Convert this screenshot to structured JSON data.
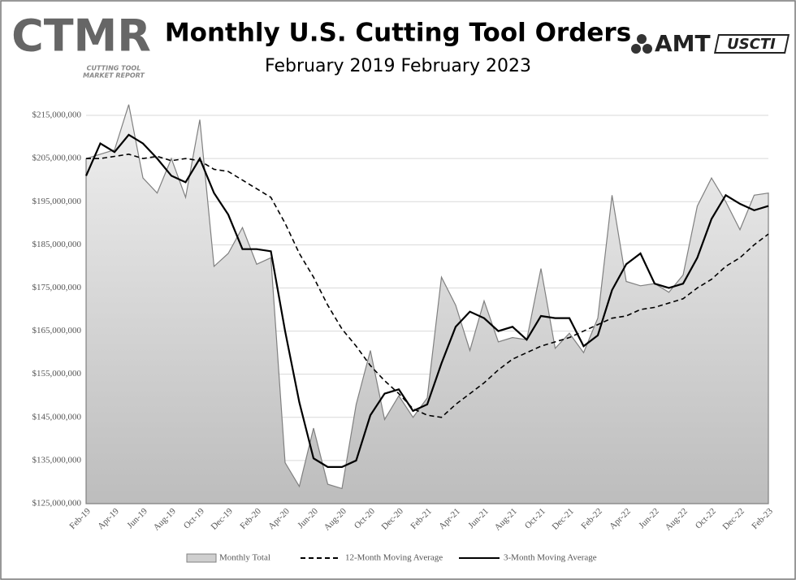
{
  "logos": {
    "ctmr": "CTMR",
    "ctmr_tagline_1": "CUTTING TOOL",
    "ctmr_tagline_2": "MARKET REPORT",
    "amt": "AMT",
    "uscti": "USCTI"
  },
  "chart_data": {
    "type": "line",
    "title": "Monthly U.S. Cutting Tool Orders",
    "subtitle": "February 2019 February 2023",
    "categories": [
      "Feb-19",
      null,
      "Apr-19",
      null,
      "Jun-19",
      null,
      "Aug-19",
      null,
      "Oct-19",
      null,
      "Dec-19",
      null,
      "Feb-20",
      null,
      "Apr-20",
      null,
      "Jun-20",
      null,
      "Aug-20",
      null,
      "Oct-20",
      null,
      "Dec-20",
      null,
      "Feb-21",
      null,
      "Apr-21",
      null,
      "Jun-21",
      null,
      "Aug-21",
      null,
      "Oct-21",
      null,
      "Dec-21",
      null,
      "Feb-22",
      null,
      "Apr-22",
      null,
      "Jun-22",
      null,
      "Aug-22",
      null,
      "Oct-22",
      null,
      "Dec-22",
      null,
      "Feb-23"
    ],
    "series": [
      {
        "name": "Monthly Total",
        "style": "area",
        "color": "#808080",
        "values": [
          205000000,
          206000000,
          207000000,
          217500000,
          200500000,
          197000000,
          205000000,
          196000000,
          214000000,
          180000000,
          183000000,
          189000000,
          180500000,
          182000000,
          134500000,
          129000000,
          142500000,
          129500000,
          128500000,
          148000000,
          160500000,
          144500000,
          150000000,
          145000000,
          149500000,
          177500000,
          171000000,
          160500000,
          172000000,
          162500000,
          163500000,
          163000000,
          179500000,
          161000000,
          164500000,
          160000000,
          168000000,
          196500000,
          176500000,
          175500000,
          176000000,
          174000000,
          178000000,
          194000000,
          200500000,
          195000000,
          188500000,
          196500000,
          197000000
        ]
      },
      {
        "name": "12-Month Moving Average",
        "style": "dashed",
        "color": "#000000",
        "values": [
          205000000,
          205000000,
          205500000,
          206000000,
          205000000,
          205500000,
          204500000,
          205000000,
          204500000,
          202500000,
          202000000,
          200000000,
          198000000,
          196000000,
          190000000,
          183000000,
          177500000,
          171000000,
          165500000,
          161500000,
          157000000,
          153500000,
          150500000,
          147000000,
          145500000,
          145000000,
          148000000,
          150500000,
          153000000,
          156000000,
          158500000,
          160000000,
          161500000,
          162500000,
          163500000,
          165000000,
          166500000,
          168000000,
          168500000,
          170000000,
          170500000,
          171500000,
          172500000,
          175000000,
          177000000,
          180000000,
          182000000,
          185000000,
          187500000
        ]
      },
      {
        "name": "3-Month Moving Average",
        "style": "solid",
        "color": "#000000",
        "values": [
          201000000,
          208500000,
          206500000,
          210500000,
          208500000,
          205000000,
          201000000,
          199500000,
          205000000,
          197000000,
          192000000,
          184000000,
          184000000,
          183500000,
          165000000,
          148500000,
          135500000,
          133500000,
          133500000,
          135000000,
          145500000,
          150500000,
          151500000,
          146500000,
          148000000,
          157500000,
          166000000,
          169500000,
          168000000,
          165000000,
          166000000,
          163000000,
          168500000,
          168000000,
          168000000,
          161500000,
          164000000,
          174500000,
          180500000,
          183000000,
          176000000,
          175000000,
          176000000,
          182000000,
          191000000,
          196500000,
          194500000,
          193000000,
          194000000
        ]
      }
    ],
    "ylim": [
      125000000,
      220000000
    ],
    "yticks": [
      {
        "value": 125000000,
        "label": "$125,000,000"
      },
      {
        "value": 135000000,
        "label": "$135,000,000"
      },
      {
        "value": 145000000,
        "label": "$145,000,000"
      },
      {
        "value": 155000000,
        "label": "$155,000,000"
      },
      {
        "value": 165000000,
        "label": "$165,000,000"
      },
      {
        "value": 175000000,
        "label": "$175,000,000"
      },
      {
        "value": 185000000,
        "label": "$185,000,000"
      },
      {
        "value": 195000000,
        "label": "$195,000,000"
      },
      {
        "value": 205000000,
        "label": "$205,000,000"
      },
      {
        "value": 215000000,
        "label": "$215,000,000"
      }
    ],
    "grid": true,
    "legend": "bottom"
  }
}
